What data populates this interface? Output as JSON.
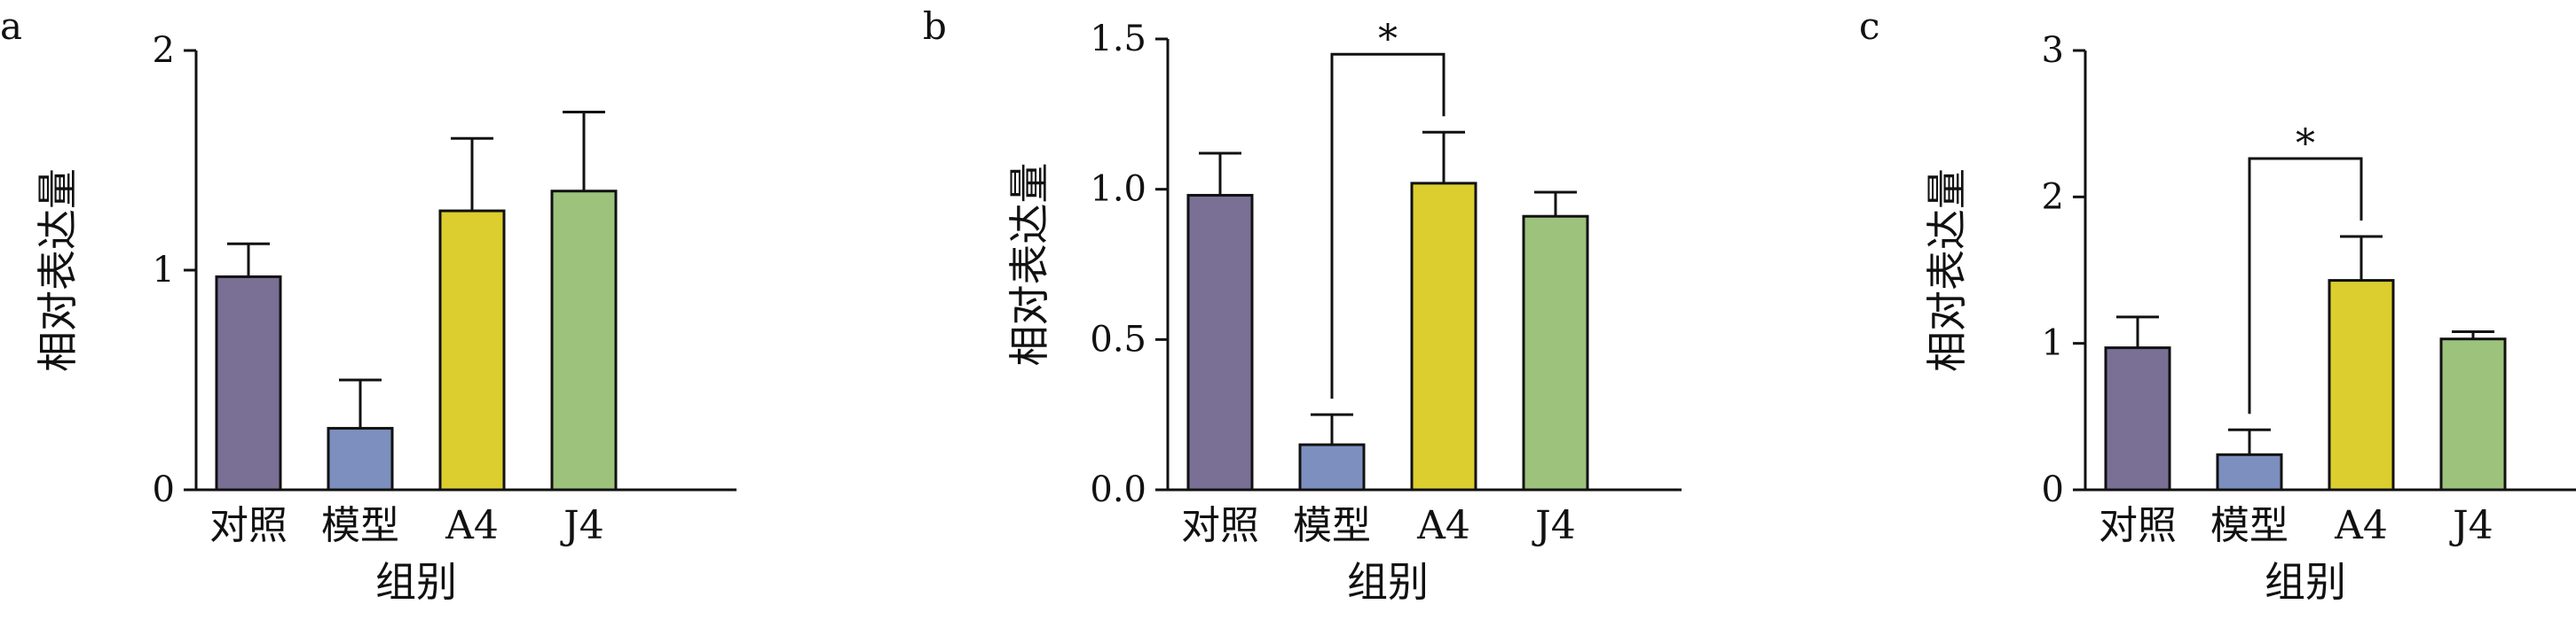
{
  "chart_data": [
    {
      "type": "bar",
      "panel": "a",
      "categories": [
        "对照",
        "模型",
        "A4",
        "J4"
      ],
      "values": [
        0.97,
        0.28,
        1.27,
        1.36
      ],
      "errors": [
        0.15,
        0.22,
        0.33,
        0.36
      ],
      "colors": [
        "#7a7096",
        "#7c8fbf",
        "#dcce2e",
        "#9cc27c"
      ],
      "xlabel": "组别",
      "ylabel": "相对表达量",
      "ylim": [
        0,
        2
      ],
      "yticks": [
        "0",
        "1",
        "2"
      ],
      "significance": []
    },
    {
      "type": "bar",
      "panel": "b",
      "categories": [
        "对照",
        "模型",
        "A4",
        "J4"
      ],
      "values": [
        0.98,
        0.15,
        1.02,
        0.91
      ],
      "errors": [
        0.14,
        0.1,
        0.17,
        0.08
      ],
      "colors": [
        "#7a7096",
        "#7c8fbf",
        "#dcce2e",
        "#9cc27c"
      ],
      "xlabel": "组别",
      "ylabel": "相对表达量",
      "ylim": [
        0,
        1.5
      ],
      "yticks": [
        "0.0",
        "0.5",
        "1.0",
        "1.5"
      ],
      "significance": [
        {
          "from": 1,
          "to": 2,
          "label": "*"
        }
      ]
    },
    {
      "type": "bar",
      "panel": "c",
      "categories": [
        "对照",
        "模型",
        "A4",
        "J4"
      ],
      "values": [
        0.97,
        0.24,
        1.43,
        1.03
      ],
      "errors": [
        0.21,
        0.17,
        0.3,
        0.05
      ],
      "colors": [
        "#7a7096",
        "#7c8fbf",
        "#dcce2e",
        "#9cc27c"
      ],
      "xlabel": "组别",
      "ylabel": "相对表达量",
      "ylim": [
        0,
        3
      ],
      "yticks": [
        "0",
        "1",
        "2",
        "3"
      ],
      "significance": [
        {
          "from": 1,
          "to": 2,
          "label": "*"
        }
      ]
    }
  ]
}
